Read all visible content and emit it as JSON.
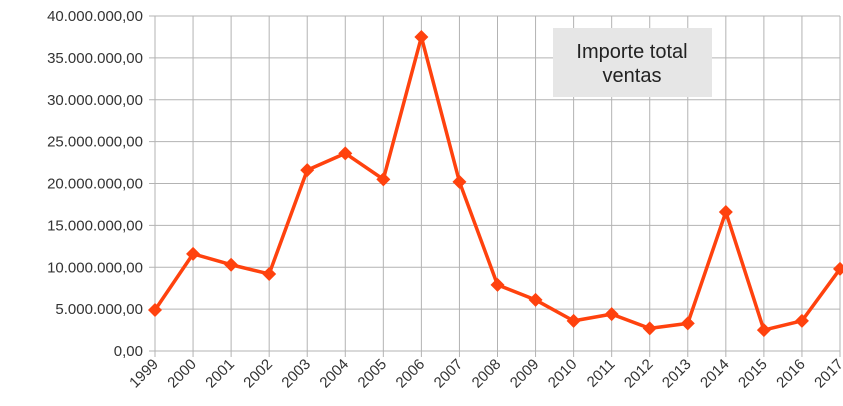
{
  "chart_data": {
    "type": "line",
    "categories": [
      "1999",
      "2000",
      "2001",
      "2002",
      "2003",
      "2004",
      "2005",
      "2006",
      "2007",
      "2008",
      "2009",
      "2010",
      "2011",
      "2012",
      "2013",
      "2014",
      "2015",
      "2016",
      "2017"
    ],
    "series": [
      {
        "name": "Importe total ventas",
        "color": "#ff420e",
        "values": [
          4900000,
          11600000,
          10300000,
          9200000,
          21600000,
          23600000,
          20500000,
          37500000,
          20200000,
          7900000,
          6100000,
          3600000,
          4400000,
          2700000,
          3300000,
          16600000,
          2500000,
          3600000,
          9800000
        ]
      }
    ],
    "ylim": [
      0,
      40000000
    ],
    "yticks": [
      {
        "value": 0,
        "label": "0,00"
      },
      {
        "value": 5000000,
        "label": "5.000.000,00"
      },
      {
        "value": 10000000,
        "label": "10.000.000,00"
      },
      {
        "value": 15000000,
        "label": "15.000.000,00"
      },
      {
        "value": 20000000,
        "label": "20.000.000,00"
      },
      {
        "value": 25000000,
        "label": "25.000.000,00"
      },
      {
        "value": 30000000,
        "label": "30.000.000,00"
      },
      {
        "value": 35000000,
        "label": "35.000.000,00"
      },
      {
        "value": 40000000,
        "label": "40.000.000,00"
      }
    ],
    "grid": true,
    "legend": "top-right"
  }
}
